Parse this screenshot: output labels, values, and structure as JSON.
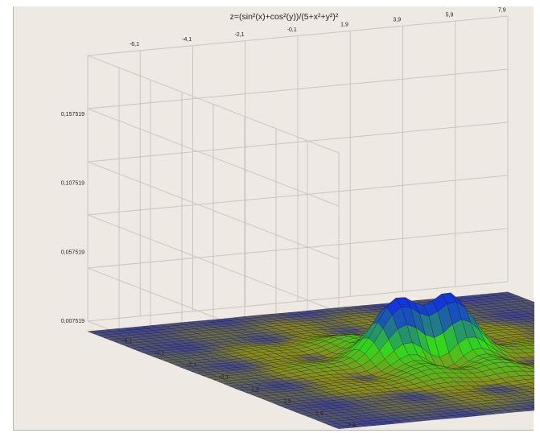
{
  "chart_data": {
    "type": "surface3d",
    "title": "z=(sin²(x)+cos²(y))/(5+x²+y²)²",
    "x_ticks": [
      "-6,1",
      "-4,1",
      "-2,1",
      "-0,1",
      "1,9",
      "3,9",
      "5,9",
      "7,9"
    ],
    "y_ticks": [
      "-6,1",
      "-4,1",
      "-2,1",
      "-0,1",
      "1,9",
      "3,9",
      "5,9",
      "7,9"
    ],
    "z_ticks": [
      "0,007519",
      "0,057519",
      "0,107519",
      "0,157519"
    ],
    "x_range": [
      -8,
      8
    ],
    "y_range": [
      -8,
      8
    ],
    "z_range": [
      0.007519,
      0.2
    ],
    "grid": true,
    "colors": {
      "low": "#3a3ea0",
      "mid_low": "#8c8c1e",
      "mid": "#33d61c",
      "high": "#1437d8",
      "mesh": "#111111",
      "grid": "#c9c5c0"
    }
  }
}
